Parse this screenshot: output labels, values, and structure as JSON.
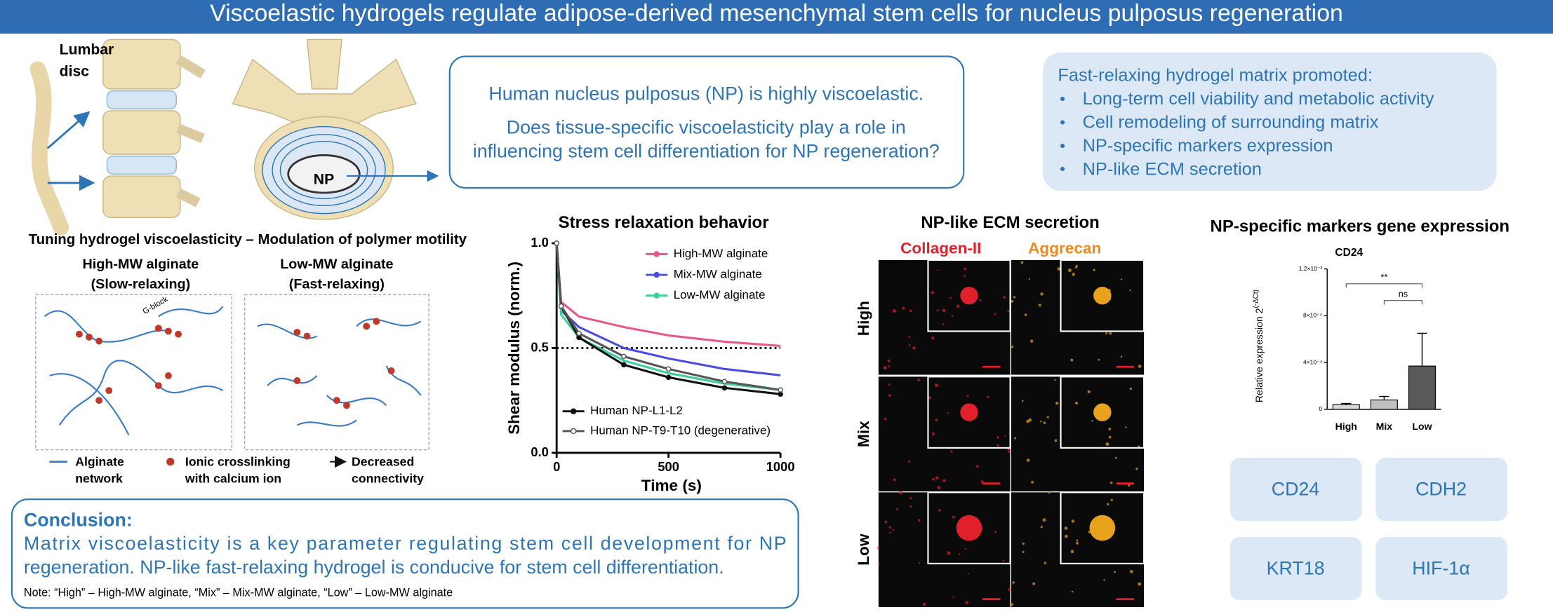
{
  "title": "Viscoelastic hydrogels regulate adipose-derived mesenchymal stem cells for nucleus pulposus regeneration",
  "anatomy": {
    "label_line1": "Lumbar",
    "label_line2": "disc",
    "np": "NP"
  },
  "question_box": {
    "lines": [
      "Human nucleus pulposus (NP) is highly viscoelastic.",
      "Does tissue-specific viscoelasticity play a role in",
      "influencing stem cell differentiation for NP regeneration?"
    ]
  },
  "findings": {
    "heading": "Fast-relaxing hydrogel matrix promoted:",
    "items": [
      "Long-term cell viability and metabolic activity",
      "Cell remodeling of surrounding matrix",
      "NP-specific markers expression",
      "NP-like ECM secretion"
    ]
  },
  "tuning": {
    "title": "Tuning hydrogel viscoelasticity – Modulation of polymer motility",
    "panels": [
      {
        "name": "High-MW alginate",
        "subtitle": "(Slow-relaxing)"
      },
      {
        "name": "Low-MW alginate",
        "subtitle": "(Fast-relaxing)"
      }
    ],
    "block_label": "G-block",
    "legend": [
      {
        "line1": "Alginate",
        "line2": "network"
      },
      {
        "line1": "Ionic crosslinking",
        "line2": "with calcium ion"
      },
      {
        "line1": "Decreased",
        "line2": "connectivity"
      }
    ]
  },
  "conclusion": {
    "heading": "Conclusion:",
    "lines": [
      "Matrix viscoelasticity is a key parameter regulating stem cell development for NP",
      "regeneration. NP-like fast-relaxing hydrogel is conducive for stem cell differentiation."
    ],
    "note": "Note: “High” – High-MW alginate, “Mix” – Mix-MW alginate, “Low” – Low-MW alginate"
  },
  "chart_data": [
    {
      "type": "line",
      "title": "Stress relaxation behavior",
      "xlabel": "Time (s)",
      "ylabel": "Shear modulus (norm.)",
      "x": [
        0,
        20,
        100,
        300,
        500,
        750,
        1000
      ],
      "series": [
        {
          "name": "High-MW alginate",
          "color": "#e8578a",
          "values": [
            1,
            0.72,
            0.65,
            0.6,
            0.56,
            0.53,
            0.51
          ]
        },
        {
          "name": "Mix-MW alginate",
          "color": "#4a4de0",
          "values": [
            1,
            0.68,
            0.6,
            0.5,
            0.45,
            0.4,
            0.37
          ]
        },
        {
          "name": "Low-MW alginate",
          "color": "#3ccf9a",
          "values": [
            1,
            0.66,
            0.55,
            0.44,
            0.38,
            0.33,
            0.3
          ]
        },
        {
          "name": "Human NP-L1-L2",
          "color": "#111111",
          "marker": "filled",
          "values": [
            1,
            0.7,
            0.55,
            0.42,
            0.36,
            0.31,
            0.28
          ]
        },
        {
          "name": "Human NP-T9-T10 (degenerative)",
          "color": "#555555",
          "marker": "open",
          "values": [
            1,
            0.7,
            0.57,
            0.46,
            0.4,
            0.34,
            0.3
          ]
        }
      ],
      "xlim": [
        0,
        1000
      ],
      "ylim": [
        0,
        1
      ],
      "xticks": [
        0,
        500,
        1000
      ],
      "yticks": [
        {
          "value": 0,
          "label": "0.0"
        },
        {
          "value": 0.5,
          "label": "0.5"
        },
        {
          "value": 1,
          "label": "1.0"
        }
      ],
      "reference_line": 0.5
    },
    {
      "type": "bar",
      "title": "CD24",
      "ylabel": "Relative expression 2",
      "ylabel_superscript": "(-ΔCt)",
      "categories": [
        "High",
        "Mix",
        "Low"
      ],
      "values": [
        4e-05,
        8e-05,
        0.00037
      ],
      "errors": [
        1e-05,
        3e-05,
        0.00028
      ],
      "colors": [
        "#d9d9d9",
        "#bfbfbf",
        "#595959"
      ],
      "ylim": [
        0,
        0.0012
      ],
      "yticks": [
        {
          "value": 0,
          "label": "0"
        },
        {
          "value": 0.0004,
          "label": "4×10⁻⁴"
        },
        {
          "value": 0.0008,
          "label": "8×10⁻⁴"
        },
        {
          "value": 0.0012,
          "label": "1.2×10⁻³"
        }
      ],
      "significance": [
        {
          "from": 0,
          "to": 2,
          "label": "**"
        },
        {
          "from": 1,
          "to": 2,
          "label": "ns"
        }
      ]
    }
  ],
  "ecm": {
    "title": "NP-like ECM secretion",
    "columns": [
      "Collagen-II",
      "Aggrecan"
    ],
    "rows": [
      "High",
      "Mix",
      "Low"
    ]
  },
  "markers": {
    "title": "NP-specific markers gene expression",
    "genes": [
      "CD24",
      "CDH2",
      "KRT18",
      "HIF-1α"
    ]
  }
}
